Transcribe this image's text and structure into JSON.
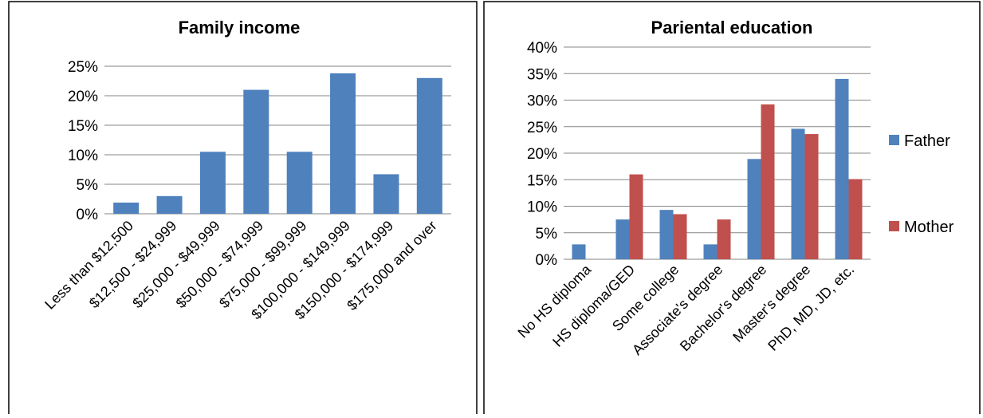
{
  "colors": {
    "father": "#4F81BD",
    "mother": "#C0504D",
    "grid": "#868686",
    "border": "#000000"
  },
  "chart_data": [
    {
      "type": "bar",
      "title": "Family income",
      "xlabel": "",
      "ylabel": "",
      "ylim": [
        0,
        25
      ],
      "yticks": [
        "0%",
        "5%",
        "10%",
        "15%",
        "20%",
        "25%"
      ],
      "grid": true,
      "legend": "none",
      "categories": [
        "Less than $12,500",
        "$12,500 - $24,999",
        "$25,000 - $49,999",
        "$50,000 - $74,999",
        "$75,000 - $99,999",
        "$100,000 - $149,999",
        "$150,000 - $174,999",
        "$175,000 and over"
      ],
      "series": [
        {
          "name": "",
          "color": "#4F81BD",
          "values": [
            1.9,
            3.0,
            10.5,
            21.0,
            10.5,
            23.8,
            6.7,
            23.0
          ]
        }
      ]
    },
    {
      "type": "bar",
      "title": "Pariental education",
      "xlabel": "",
      "ylabel": "",
      "ylim": [
        0,
        40
      ],
      "yticks": [
        "0%",
        "5%",
        "10%",
        "15%",
        "20%",
        "25%",
        "30%",
        "35%",
        "40%"
      ],
      "grid": true,
      "legend": "right",
      "categories": [
        "No HS diploma",
        "HS diploma/GED",
        "Some college",
        "Associate's degree",
        "Bachelor's degree",
        "Master's degree",
        "PhD, MD, JD, etc."
      ],
      "series": [
        {
          "name": "Father",
          "color": "#4F81BD",
          "values": [
            2.8,
            7.5,
            9.3,
            2.8,
            18.9,
            24.6,
            34.0
          ]
        },
        {
          "name": "Mother",
          "color": "#C0504D",
          "values": [
            0,
            16.0,
            8.5,
            7.5,
            29.2,
            23.6,
            15.1
          ]
        }
      ]
    }
  ]
}
